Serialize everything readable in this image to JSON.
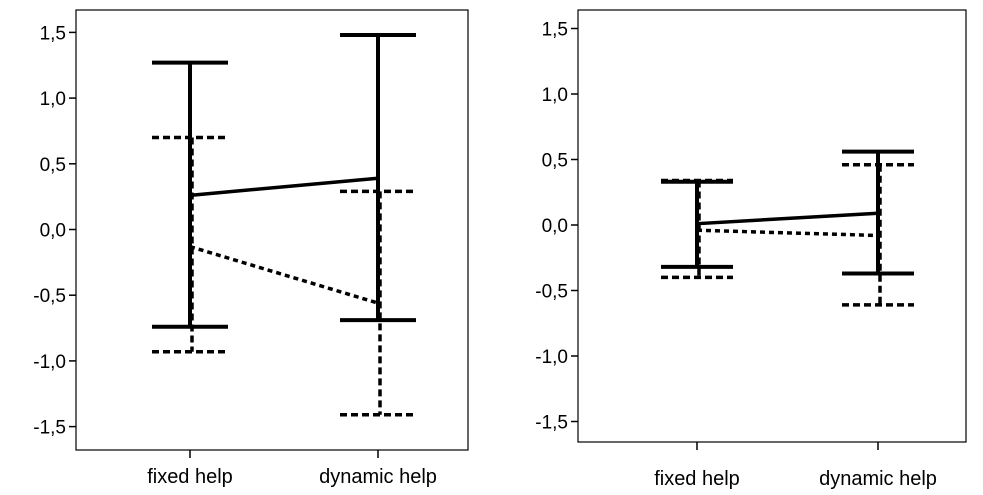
{
  "chart_data": [
    {
      "type": "line",
      "categories": [
        "fixed help",
        "dynamic help"
      ],
      "ylim": [
        -1.65,
        1.65
      ],
      "yticks": [
        "1,5",
        "1,0",
        "0,5",
        "0,0",
        "-0,5",
        "-1,0",
        "-1,5"
      ],
      "ytick_values": [
        1.5,
        1.0,
        0.5,
        0.0,
        -0.5,
        -1.0,
        -1.5
      ],
      "grid": false,
      "series": [
        {
          "style": "solid",
          "color": "#000000",
          "means": [
            0.26,
            0.39
          ],
          "upper": [
            1.27,
            1.48
          ],
          "lower": [
            -0.74,
            -0.69
          ]
        },
        {
          "style": "dashed",
          "color": "#000000",
          "means": [
            -0.13,
            -0.56
          ],
          "upper": [
            0.7,
            0.29
          ],
          "lower": [
            -0.93,
            -1.41
          ]
        }
      ]
    },
    {
      "type": "line",
      "categories": [
        "fixed help",
        "dynamic help"
      ],
      "ylim": [
        -1.65,
        1.65
      ],
      "yticks": [
        "1,5",
        "1,0",
        "0,5",
        "0,0",
        "-0,5",
        "-1,0",
        "-1,5"
      ],
      "ytick_values": [
        1.5,
        1.0,
        0.5,
        0.0,
        -0.5,
        -1.0,
        -1.5
      ],
      "grid": false,
      "series": [
        {
          "style": "solid",
          "color": "#000000",
          "means": [
            0.01,
            0.09
          ],
          "upper": [
            0.33,
            0.56
          ],
          "lower": [
            -0.32,
            -0.37
          ]
        },
        {
          "style": "dashed",
          "color": "#000000",
          "means": [
            -0.04,
            -0.08
          ],
          "upper": [
            0.34,
            0.46
          ],
          "lower": [
            -0.4,
            -0.61
          ]
        }
      ]
    }
  ]
}
